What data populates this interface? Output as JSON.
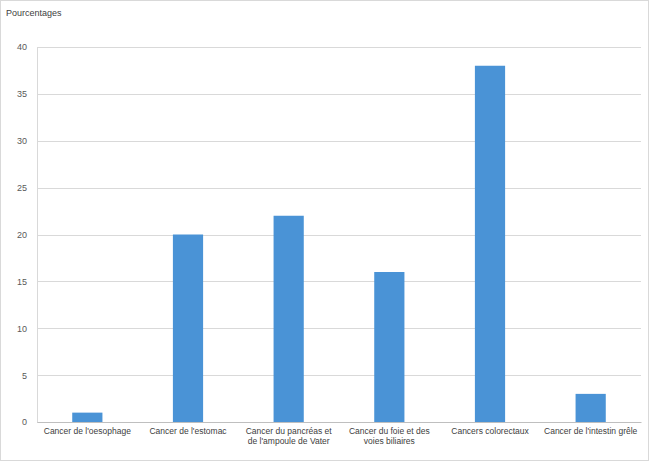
{
  "chart_data": {
    "type": "bar",
    "y_label": "Pourcentages",
    "categories": [
      "Cancer de l'oesophage",
      "Cancer de l'estomac",
      "Cancer du pancréas et de l'ampoule de Vater",
      "Cancer du foie et des voies biliaires",
      "Cancers colorectaux",
      "Cancer de l'intestin grêle"
    ],
    "values": [
      1,
      20,
      22,
      16,
      38,
      3
    ],
    "color": "#4a93d6",
    "ylim": [
      0,
      40
    ],
    "yticks": [
      0,
      5,
      10,
      15,
      20,
      25,
      30,
      35,
      40
    ],
    "grid": true
  }
}
